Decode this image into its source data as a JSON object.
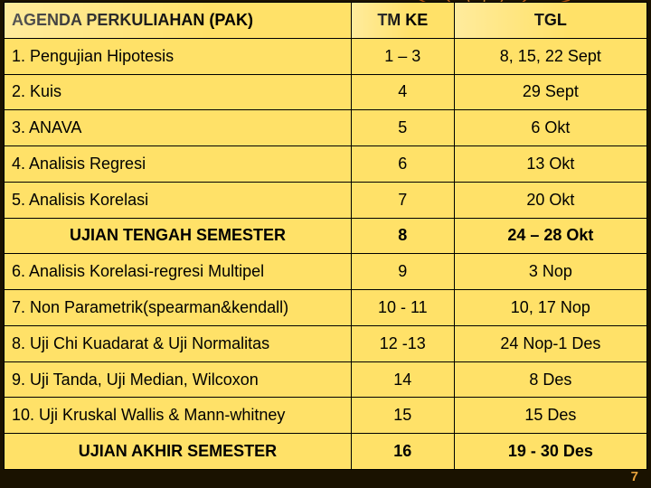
{
  "background_color": "#1a1200",
  "cell_color": "#ffe168",
  "border_color": "#000000",
  "text_color": "#000000",
  "accent_color": "#e8a23a",
  "page_number": "7",
  "headers": {
    "agenda": "AGENDA PERKULIAHAN (PAK)",
    "tm": "TM KE",
    "tgl": "TGL"
  },
  "rows": [
    {
      "agenda": "1.  Pengujian Hipotesis",
      "tm": "1 – 3",
      "tgl": "8, 15, 22 Sept",
      "bold": false,
      "center": false
    },
    {
      "agenda": "2.  Kuis",
      "tm": "4",
      "tgl": "29 Sept",
      "bold": false,
      "center": false
    },
    {
      "agenda": "3. ANAVA",
      "tm": "5",
      "tgl": "6 Okt",
      "bold": false,
      "center": false
    },
    {
      "agenda": "4. Analisis Regresi",
      "tm": "6",
      "tgl": "13 Okt",
      "bold": false,
      "center": false
    },
    {
      "agenda": "5. Analisis Korelasi",
      "tm": "7",
      "tgl": "20 Okt",
      "bold": false,
      "center": false
    },
    {
      "agenda": "UJIAN TENGAH SEMESTER",
      "tm": "8",
      "tgl": "24 – 28 Okt",
      "bold": true,
      "center": true
    },
    {
      "agenda": "6. Analisis Korelasi-regresi Multipel",
      "tm": "9",
      "tgl": "3 Nop",
      "bold": false,
      "center": false
    },
    {
      "agenda": "7. Non Parametrik(spearman&kendall)",
      "tm": "10 - 11",
      "tgl": "10, 17 Nop",
      "bold": false,
      "center": false
    },
    {
      "agenda": "8. Uji Chi Kuadarat & Uji Normalitas",
      "tm": "12 -13",
      "tgl": "24 Nop-1 Des",
      "bold": false,
      "center": false
    },
    {
      "agenda": "9. Uji Tanda, Uji Median, Wilcoxon",
      "tm": "14",
      "tgl": "8 Des",
      "bold": false,
      "center": false
    },
    {
      "agenda": "10. Uji Kruskal Wallis & Mann-whitney",
      "tm": "15",
      "tgl": "15 Des",
      "bold": false,
      "center": false
    },
    {
      "agenda": "UJIAN AKHIR SEMESTER",
      "tm": "16",
      "tgl": "19 - 30 Des",
      "bold": true,
      "center": true
    }
  ],
  "decoration_color": "#d96a1a"
}
